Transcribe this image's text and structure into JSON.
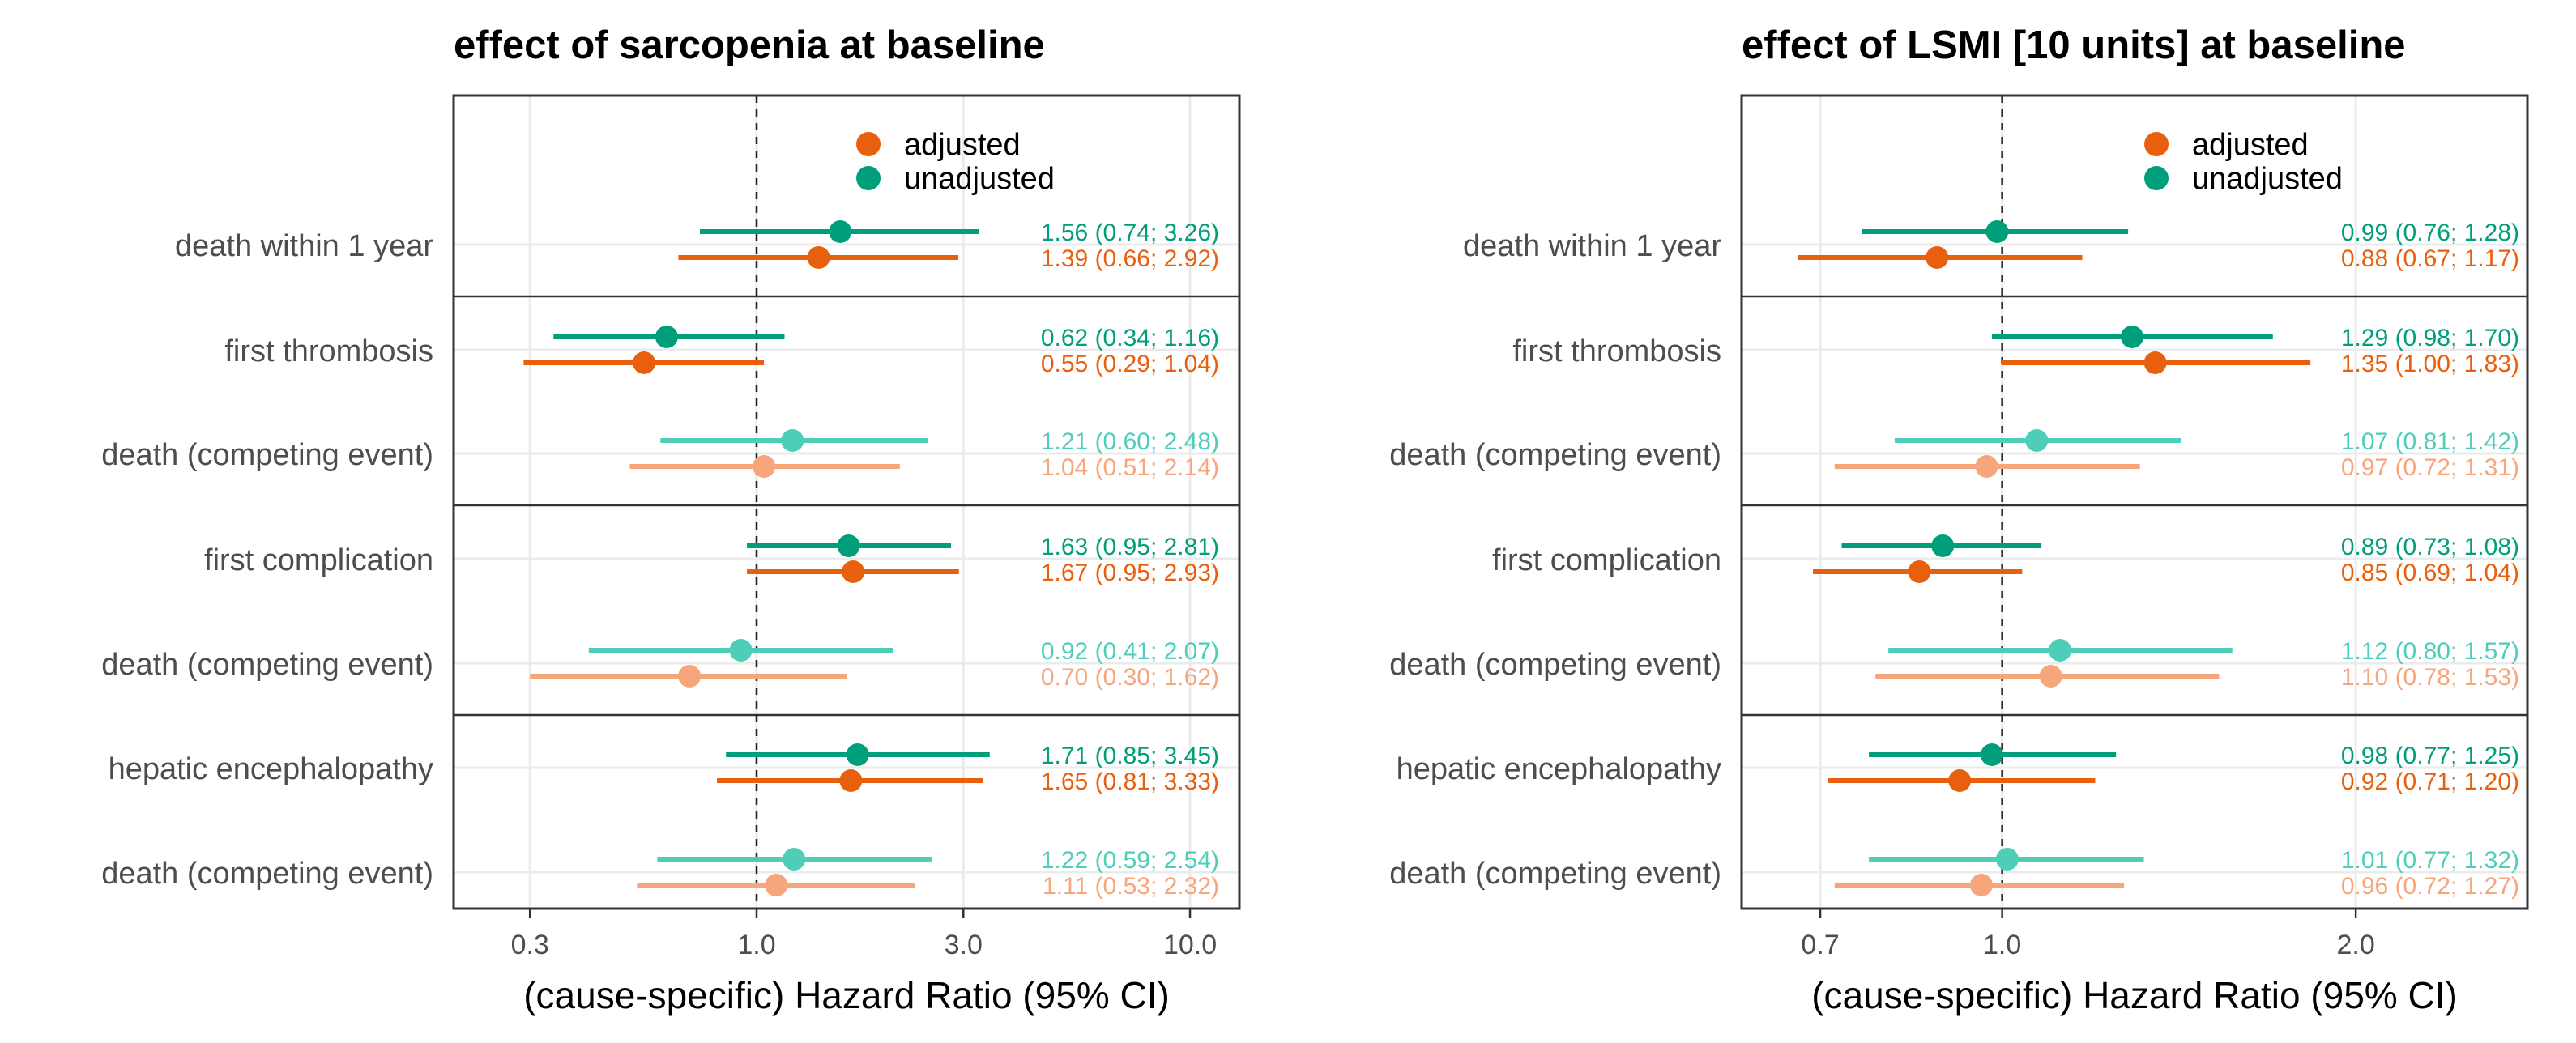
{
  "colors": {
    "adjusted": "#E8600E",
    "unadjusted": "#009E7A",
    "adjusted_light": "#F7A57A",
    "unadjusted_light": "#4ECDB8",
    "grid": "#EBEBEB",
    "frame": "#333333"
  },
  "legend": {
    "adjusted": "adjusted",
    "unadjusted": "unadjusted"
  },
  "chart_data": [
    {
      "type": "forest",
      "title": "effect of sarcopenia at baseline",
      "xlabel": "(cause-specific) Hazard Ratio (95% CI)",
      "scale": "log",
      "xlim": [
        0.2,
        13
      ],
      "ref_line": 1.0,
      "ticks": [
        0.3,
        1.0,
        3.0,
        10.0
      ],
      "tick_labels": [
        "0.3",
        "1.0",
        "3.0",
        "10.0"
      ],
      "rows": [
        {
          "label": "death within 1 year",
          "emphasis": "primary",
          "unadjusted": {
            "hr": 1.56,
            "lo": 0.74,
            "hi": 3.26,
            "text": "1.56 (0.74; 3.26)"
          },
          "adjusted": {
            "hr": 1.39,
            "lo": 0.66,
            "hi": 2.92,
            "text": "1.39 (0.66; 2.92)"
          }
        },
        {
          "label": "first thrombosis",
          "emphasis": "primary",
          "unadjusted": {
            "hr": 0.62,
            "lo": 0.34,
            "hi": 1.16,
            "text": "0.62 (0.34; 1.16)"
          },
          "adjusted": {
            "hr": 0.55,
            "lo": 0.29,
            "hi": 1.04,
            "text": "0.55 (0.29; 1.04)"
          }
        },
        {
          "label": "death (competing event)",
          "emphasis": "competing",
          "unadjusted": {
            "hr": 1.21,
            "lo": 0.6,
            "hi": 2.48,
            "text": "1.21 (0.60; 2.48)"
          },
          "adjusted": {
            "hr": 1.04,
            "lo": 0.51,
            "hi": 2.14,
            "text": "1.04 (0.51; 2.14)"
          }
        },
        {
          "label": "first complication",
          "emphasis": "primary",
          "unadjusted": {
            "hr": 1.63,
            "lo": 0.95,
            "hi": 2.81,
            "text": "1.63 (0.95; 2.81)"
          },
          "adjusted": {
            "hr": 1.67,
            "lo": 0.95,
            "hi": 2.93,
            "text": "1.67 (0.95; 2.93)"
          }
        },
        {
          "label": "death (competing event)",
          "emphasis": "competing",
          "unadjusted": {
            "hr": 0.92,
            "lo": 0.41,
            "hi": 2.07,
            "text": "0.92 (0.41; 2.07)"
          },
          "adjusted": {
            "hr": 0.7,
            "lo": 0.3,
            "hi": 1.62,
            "text": "0.70 (0.30; 1.62)"
          }
        },
        {
          "label": "hepatic encephalopathy",
          "emphasis": "primary",
          "unadjusted": {
            "hr": 1.71,
            "lo": 0.85,
            "hi": 3.45,
            "text": "1.71 (0.85; 3.45)"
          },
          "adjusted": {
            "hr": 1.65,
            "lo": 0.81,
            "hi": 3.33,
            "text": "1.65 (0.81; 3.33)"
          }
        },
        {
          "label": "death (competing event)",
          "emphasis": "competing",
          "unadjusted": {
            "hr": 1.22,
            "lo": 0.59,
            "hi": 2.54,
            "text": "1.22 (0.59; 2.54)"
          },
          "adjusted": {
            "hr": 1.11,
            "lo": 0.53,
            "hi": 2.32,
            "text": "1.11 (0.53; 2.32)"
          }
        }
      ]
    },
    {
      "type": "forest",
      "title": "effect of LSMI [10 units] at baseline",
      "xlabel": "(cause-specific) Hazard Ratio (95% CI)",
      "scale": "log",
      "xlim": [
        0.6,
        2.8
      ],
      "ref_line": 1.0,
      "ticks": [
        0.7,
        1.0,
        2.0
      ],
      "tick_labels": [
        "0.7",
        "1.0",
        "2.0"
      ],
      "rows": [
        {
          "label": "death within 1 year",
          "emphasis": "primary",
          "unadjusted": {
            "hr": 0.99,
            "lo": 0.76,
            "hi": 1.28,
            "text": "0.99 (0.76; 1.28)"
          },
          "adjusted": {
            "hr": 0.88,
            "lo": 0.67,
            "hi": 1.17,
            "text": "0.88 (0.67; 1.17)"
          }
        },
        {
          "label": "first thrombosis",
          "emphasis": "primary",
          "unadjusted": {
            "hr": 1.29,
            "lo": 0.98,
            "hi": 1.7,
            "text": "1.29 (0.98; 1.70)"
          },
          "adjusted": {
            "hr": 1.35,
            "lo": 1.0,
            "hi": 1.83,
            "text": "1.35 (1.00; 1.83)"
          }
        },
        {
          "label": "death (competing event)",
          "emphasis": "competing",
          "unadjusted": {
            "hr": 1.07,
            "lo": 0.81,
            "hi": 1.42,
            "text": "1.07 (0.81; 1.42)"
          },
          "adjusted": {
            "hr": 0.97,
            "lo": 0.72,
            "hi": 1.31,
            "text": "0.97 (0.72; 1.31)"
          }
        },
        {
          "label": "first complication",
          "emphasis": "primary",
          "unadjusted": {
            "hr": 0.89,
            "lo": 0.73,
            "hi": 1.08,
            "text": "0.89 (0.73; 1.08)"
          },
          "adjusted": {
            "hr": 0.85,
            "lo": 0.69,
            "hi": 1.04,
            "text": "0.85 (0.69; 1.04)"
          }
        },
        {
          "label": "death (competing event)",
          "emphasis": "competing",
          "unadjusted": {
            "hr": 1.12,
            "lo": 0.8,
            "hi": 1.57,
            "text": "1.12 (0.80; 1.57)"
          },
          "adjusted": {
            "hr": 1.1,
            "lo": 0.78,
            "hi": 1.53,
            "text": "1.10 (0.78; 1.53)"
          }
        },
        {
          "label": "hepatic encephalopathy",
          "emphasis": "primary",
          "unadjusted": {
            "hr": 0.98,
            "lo": 0.77,
            "hi": 1.25,
            "text": "0.98 (0.77; 1.25)"
          },
          "adjusted": {
            "hr": 0.92,
            "lo": 0.71,
            "hi": 1.2,
            "text": "0.92 (0.71; 1.20)"
          }
        },
        {
          "label": "death (competing event)",
          "emphasis": "competing",
          "unadjusted": {
            "hr": 1.01,
            "lo": 0.77,
            "hi": 1.32,
            "text": "1.01 (0.77; 1.32)"
          },
          "adjusted": {
            "hr": 0.96,
            "lo": 0.72,
            "hi": 1.27,
            "text": "0.96 (0.72; 1.27)"
          }
        }
      ]
    }
  ]
}
